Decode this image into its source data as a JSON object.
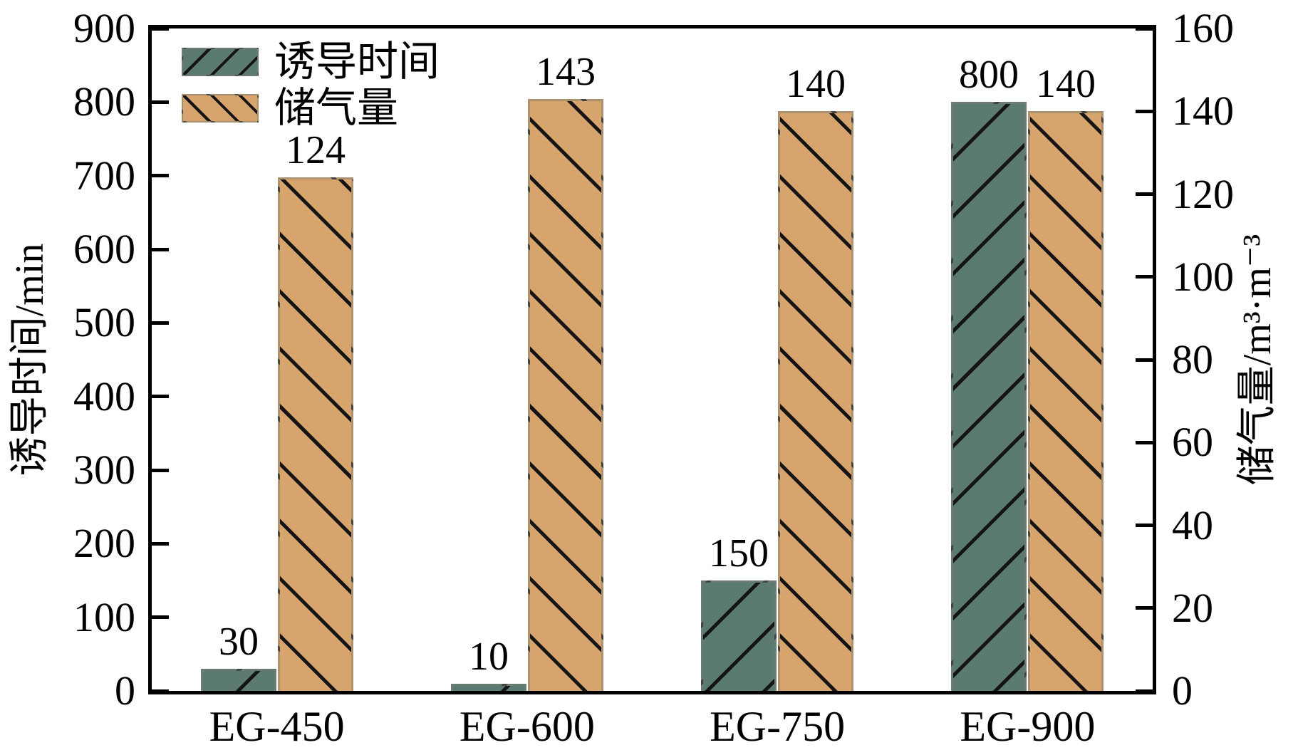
{
  "chart_data": {
    "type": "bar",
    "categories": [
      "EG-450",
      "EG-600",
      "EG-750",
      "EG-900"
    ],
    "series": [
      {
        "name": "诱导时间",
        "axis": "left",
        "color": "#5b7b72",
        "hatch": "/",
        "values": [
          30,
          10,
          150,
          800
        ],
        "bar_labels": [
          "30",
          "10",
          "150",
          "800"
        ]
      },
      {
        "name": "储气量",
        "axis": "right",
        "color": "#d7a46e",
        "hatch": "\\",
        "values": [
          124,
          143,
          140,
          140
        ],
        "bar_labels": [
          "124",
          "143",
          "140",
          "140"
        ]
      }
    ],
    "left_axis": {
      "label": "诱导时间/min",
      "min": 0,
      "max": 900,
      "ticks": [
        0,
        100,
        200,
        300,
        400,
        500,
        600,
        700,
        800,
        900
      ]
    },
    "right_axis": {
      "label": "储气量/m³·m⁻³",
      "min": 0,
      "max": 160,
      "ticks": [
        0,
        20,
        40,
        60,
        80,
        100,
        120,
        140,
        160
      ]
    },
    "grid": false,
    "legend_position": "top-left",
    "hatch_color": "#141414",
    "frame_color": "#000000"
  },
  "legend": {
    "items": [
      {
        "label": "诱导时间"
      },
      {
        "label": "储气量"
      }
    ]
  }
}
